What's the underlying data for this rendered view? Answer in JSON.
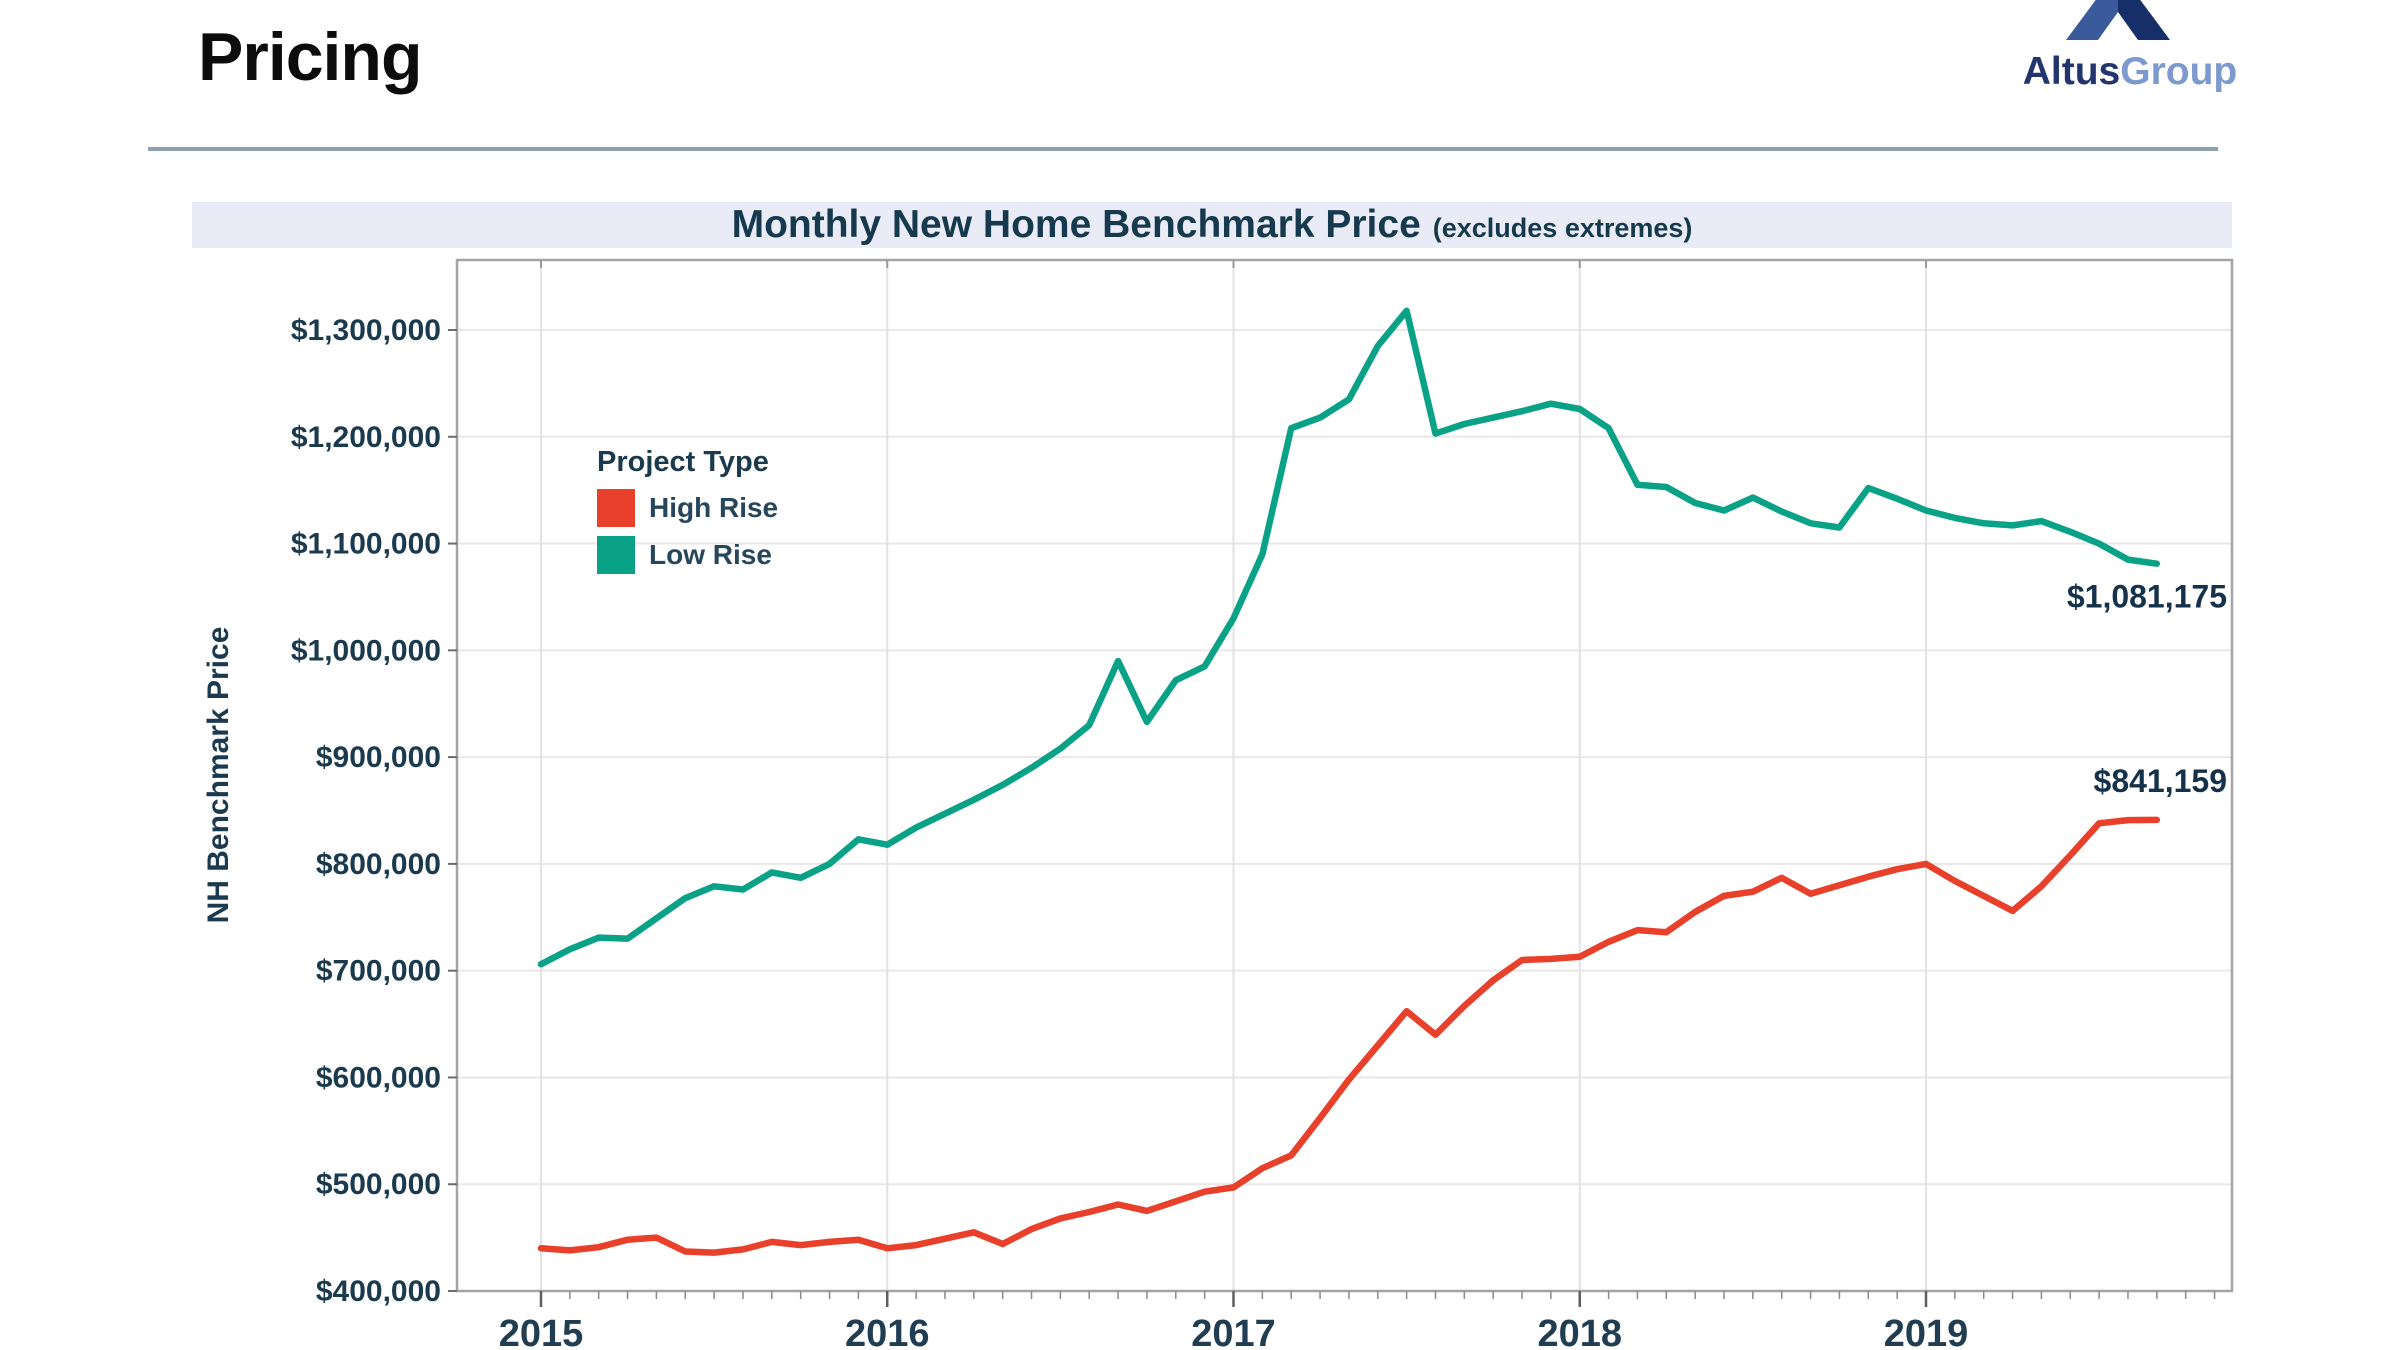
{
  "page": {
    "title": "Pricing"
  },
  "logo": {
    "brand_primary": "Altus",
    "brand_secondary": "Group",
    "colors": {
      "primary_text": "#24356d",
      "secondary_text": "#7e99ce",
      "triangle_left": "#3a5a9b",
      "triangle_right": "#172f68"
    }
  },
  "chart_data": {
    "type": "line",
    "title": "Monthly New Home Benchmark Price",
    "title_suffix": "(excludes extremes)",
    "ylabel": "NH Benchmark Price",
    "x_start": "2015-01",
    "x_end": "2019-09",
    "months": 57,
    "x_tick_labels": [
      "2015",
      "2016",
      "2017",
      "2018",
      "2019"
    ],
    "x_tick_month_index": [
      0,
      12,
      24,
      36,
      48
    ],
    "ylim": [
      400000,
      1365000
    ],
    "grid": {
      "horizontal": true,
      "vertical_years": true
    },
    "y_ticks": [
      {
        "value": 400000,
        "label": "$400,000"
      },
      {
        "value": 500000,
        "label": "$500,000"
      },
      {
        "value": 600000,
        "label": "$600,000"
      },
      {
        "value": 700000,
        "label": "$700,000"
      },
      {
        "value": 800000,
        "label": "$800,000"
      },
      {
        "value": 900000,
        "label": "$900,000"
      },
      {
        "value": 1000000,
        "label": "$1,000,000"
      },
      {
        "value": 1100000,
        "label": "$1,100,000"
      },
      {
        "value": 1200000,
        "label": "$1,200,000"
      },
      {
        "value": 1300000,
        "label": "$1,300,000"
      }
    ],
    "legend": {
      "title": "Project Type",
      "position": "inside-top-left"
    },
    "series": [
      {
        "name": "High Rise",
        "color": "#e8402a",
        "end_label": "$841,159",
        "end_value": 841159,
        "values": [
          440000,
          438000,
          441000,
          448000,
          450000,
          437000,
          436000,
          439000,
          446000,
          443000,
          446000,
          448000,
          440000,
          443000,
          449000,
          455000,
          444000,
          458000,
          468000,
          474000,
          481000,
          475000,
          484000,
          493000,
          497000,
          515000,
          527000,
          562000,
          598000,
          630000,
          662000,
          640000,
          667000,
          691000,
          710000,
          711000,
          713000,
          727000,
          738000,
          736000,
          755000,
          770000,
          774000,
          787000,
          772000,
          780000,
          788000,
          795000,
          800000,
          784000,
          770000,
          756000,
          779000,
          808000,
          838000,
          841000,
          841159
        ]
      },
      {
        "name": "Low Rise",
        "color": "#0aa287",
        "end_label": "$1,081,175",
        "end_value": 1081175,
        "values": [
          706000,
          720000,
          731000,
          730000,
          749000,
          768000,
          779000,
          776000,
          792000,
          787000,
          800000,
          823000,
          818000,
          834000,
          847000,
          860000,
          874000,
          890000,
          908000,
          930000,
          990000,
          933000,
          972000,
          985000,
          1030000,
          1090000,
          1208000,
          1218000,
          1235000,
          1285000,
          1318000,
          1203000,
          1212000,
          1218000,
          1224000,
          1231000,
          1226000,
          1208000,
          1155000,
          1153000,
          1138000,
          1131000,
          1143000,
          1130000,
          1119000,
          1115000,
          1152000,
          1142000,
          1131000,
          1124000,
          1119000,
          1117000,
          1121000,
          1111000,
          1100000,
          1085000,
          1081175
        ]
      }
    ]
  }
}
